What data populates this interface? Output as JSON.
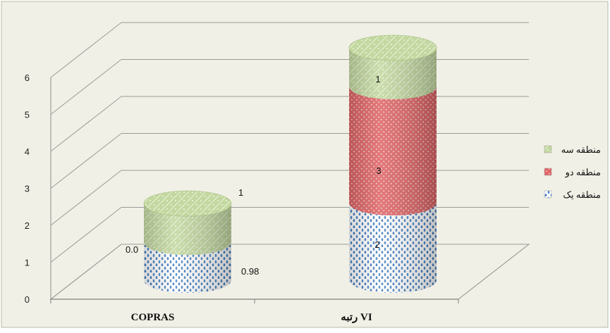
{
  "chart_data": {
    "type": "bar",
    "subtype": "stacked-3d-cylinder",
    "categories": [
      "COPRAS",
      "رتبه VI"
    ],
    "series": [
      {
        "name": "منطقه یک",
        "values": [
          0.98,
          2
        ],
        "labels": [
          "0.98",
          "2"
        ],
        "color": "#c9dff2"
      },
      {
        "name": "منطقه دو",
        "values": [
          0.0,
          3
        ],
        "labels": [
          "0.0",
          "3"
        ],
        "color": "#e0686a"
      },
      {
        "name": "منطقه سه",
        "values": [
          1,
          1
        ],
        "labels": [
          "1",
          "1"
        ],
        "color": "#c3d8a0"
      }
    ],
    "y_ticks": [
      "0",
      "1",
      "2",
      "3",
      "4",
      "5",
      "6"
    ],
    "ylim": [
      0,
      6
    ],
    "grid": true,
    "legend_position": "right",
    "background": "#f1f0e6"
  }
}
